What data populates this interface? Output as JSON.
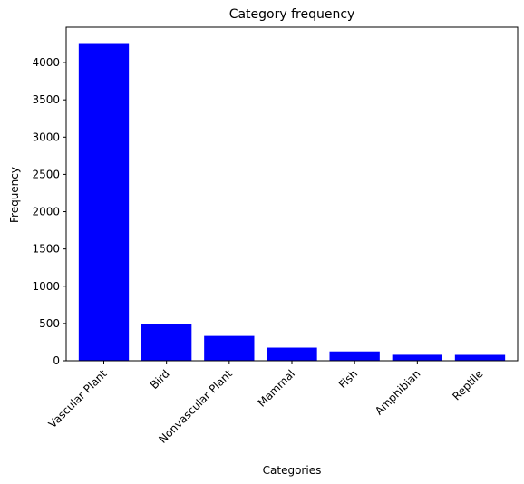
{
  "chart_data": {
    "type": "bar",
    "title": "Category frequency",
    "xlabel": "Categories",
    "ylabel": "Frequency",
    "categories": [
      "Vascular Plant",
      "Bird",
      "Nonvascular Plant",
      "Mammal",
      "Fish",
      "Amphibian",
      "Reptile"
    ],
    "values": [
      4262,
      488,
      333,
      176,
      125,
      80,
      79
    ],
    "ylim": [
      0,
      4475
    ],
    "yticks": [
      0,
      500,
      1000,
      1500,
      2000,
      2500,
      3000,
      3500,
      4000
    ],
    "bar_color": "#0000ff",
    "grid": false,
    "legend": "none"
  }
}
